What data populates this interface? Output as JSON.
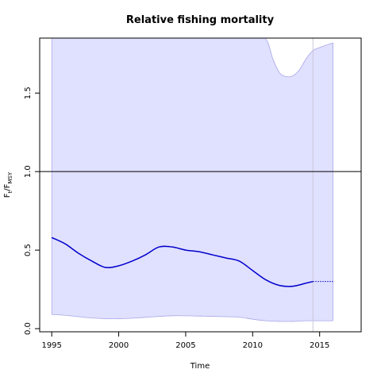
{
  "chart_data": {
    "type": "line",
    "title": "Relative fishing mortality",
    "xlabel": "Time",
    "ylabel": {
      "main": "F",
      "sub1": "t",
      "sep": "/F",
      "sub2": "MSY"
    },
    "xlim": [
      1994.1,
      2018.1
    ],
    "ylim": [
      -0.02,
      1.85
    ],
    "x_ticks": [
      1995,
      2000,
      2005,
      2010,
      2015
    ],
    "y_ticks": [
      0.0,
      0.5,
      1.0,
      1.5
    ],
    "reference_line_y": 1.0,
    "vertical_marker_x": 2014.5,
    "colors": {
      "estimate": "#0000cc",
      "band_fill": "#e0e0ff",
      "band_edge": "#a8a8e8",
      "marker": "#c8c8d8",
      "reference": "#000000"
    },
    "series": [
      {
        "role": "estimate",
        "x": [
          1995,
          1996,
          1997,
          1998,
          1999,
          2000,
          2001,
          2002,
          2003,
          2004,
          2005,
          2006,
          2007,
          2008,
          2009,
          2010,
          2011,
          2012,
          2013,
          2014,
          2014.5
        ],
        "values": [
          0.58,
          0.54,
          0.48,
          0.43,
          0.39,
          0.4,
          0.43,
          0.47,
          0.52,
          0.52,
          0.5,
          0.49,
          0.47,
          0.45,
          0.43,
          0.37,
          0.31,
          0.275,
          0.27,
          0.29,
          0.3
        ]
      },
      {
        "role": "projection",
        "x": [
          2014.5,
          2016
        ],
        "values": [
          0.3,
          0.3
        ]
      },
      {
        "role": "upper_bound",
        "x": [
          1995,
          2010,
          2011,
          2011.5,
          2012,
          2012.5,
          2013,
          2013.5,
          2014,
          2014.5,
          2015,
          2016
        ],
        "values": [
          1.85,
          1.85,
          1.84,
          1.72,
          1.63,
          1.605,
          1.61,
          1.65,
          1.72,
          1.77,
          1.79,
          1.82
        ]
      },
      {
        "role": "lower_bound",
        "x": [
          1995,
          1996,
          1998,
          2000,
          2002,
          2004,
          2006,
          2008,
          2009,
          2010,
          2011,
          2012,
          2013,
          2014,
          2016
        ],
        "values": [
          0.09,
          0.085,
          0.068,
          0.063,
          0.072,
          0.082,
          0.08,
          0.076,
          0.073,
          0.06,
          0.05,
          0.046,
          0.046,
          0.05,
          0.05
        ]
      }
    ]
  }
}
